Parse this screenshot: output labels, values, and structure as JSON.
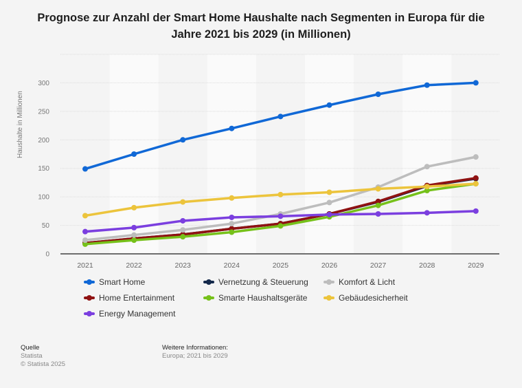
{
  "title": "Prognose zur Anzahl der Smart Home Haushalte nach Segmenten in Europa für die Jahre 2021 bis 2029 (in Millionen)",
  "chart_data": {
    "type": "line",
    "title": "Prognose zur Anzahl der Smart Home Haushalte nach Segmenten in Europa für die Jahre 2021 bis 2029 (in Millionen)",
    "xlabel": "",
    "ylabel": "Haushalte in Millionen",
    "x": [
      "2021",
      "2022",
      "2023",
      "2024",
      "2025",
      "2026",
      "2027",
      "2028",
      "2029"
    ],
    "ylim": [
      0,
      350
    ],
    "yticks": [
      0,
      50,
      100,
      150,
      200,
      250,
      300
    ],
    "grid": true,
    "legend_position": "bottom",
    "series": [
      {
        "name": "Smart Home",
        "color": "#1068d6",
        "values": [
          149,
          175,
          200,
          220,
          241,
          261,
          280,
          296,
          300
        ]
      },
      {
        "name": "Vernetzung & Steuerung",
        "color": "#14294b",
        "values": [
          19,
          27,
          34,
          44,
          53,
          70,
          91,
          119,
          132
        ]
      },
      {
        "name": "Komfort & Licht",
        "color": "#bdbdbd",
        "values": [
          24,
          33,
          42,
          53,
          70,
          90,
          117,
          153,
          170
        ]
      },
      {
        "name": "Home Entertainment",
        "color": "#8f1212",
        "values": [
          19,
          27,
          34,
          44,
          53,
          70,
          92,
          120,
          133
        ]
      },
      {
        "name": "Smarte Haushaltsgeräte",
        "color": "#76c11a",
        "values": [
          17,
          24,
          30,
          38,
          49,
          65,
          85,
          111,
          123
        ]
      },
      {
        "name": "Gebäudesicherheit",
        "color": "#ecc43c",
        "values": [
          67,
          81,
          91,
          98,
          104,
          108,
          114,
          118,
          123
        ]
      },
      {
        "name": "Energy Management",
        "color": "#7b3fdf",
        "values": [
          39,
          46,
          58,
          64,
          66,
          69,
          70,
          72,
          75
        ]
      }
    ]
  },
  "footer": {
    "source_heading": "Quelle",
    "source_name": "Statista",
    "copyright": "© Statista 2025",
    "info_heading": "Weitere Informationen:",
    "info_text": "Europa; 2021 bis 2029"
  }
}
